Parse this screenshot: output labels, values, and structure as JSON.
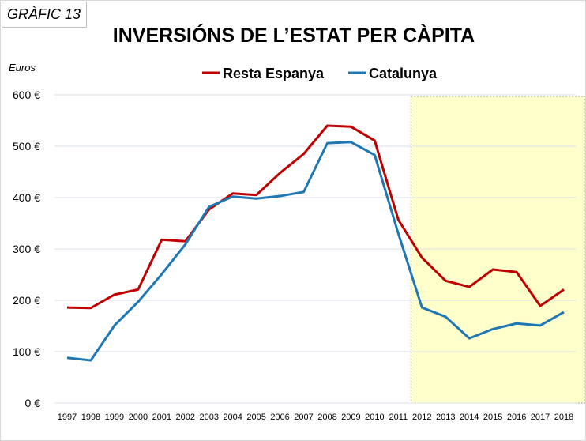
{
  "badge": "GRÀFIC  13",
  "chart_data": {
    "type": "line",
    "title": "INVERSIÓNS DE L’ESTAT PER CÀPITA",
    "ylabel": "Euros",
    "xlabel": "",
    "ylim": [
      0,
      600
    ],
    "yticks": [
      "0 €",
      "100 €",
      "200 €",
      "300 €",
      "400 €",
      "500 €",
      "600 €"
    ],
    "categories": [
      "1997",
      "1998",
      "1999",
      "2000",
      "2001",
      "2002",
      "2003",
      "2004",
      "2005",
      "2006",
      "2007",
      "2008",
      "2009",
      "2010",
      "2011",
      "2012",
      "2013",
      "2014",
      "2015",
      "2016",
      "2017",
      "2018"
    ],
    "grid": true,
    "legend": "top",
    "highlight_range": [
      "2012",
      "2018"
    ],
    "highlight_color": "#ffffcc",
    "series": [
      {
        "name": "Resta Espanya",
        "color": "#c00000",
        "values": [
          186,
          185,
          211,
          221,
          318,
          315,
          377,
          408,
          405,
          448,
          485,
          540,
          538,
          511,
          357,
          283,
          238,
          226,
          260,
          255,
          189,
          221
        ]
      },
      {
        "name": "Catalunya",
        "color": "#1f77b4",
        "values": [
          88,
          83,
          151,
          197,
          251,
          309,
          382,
          402,
          398,
          403,
          411,
          506,
          508,
          483,
          330,
          186,
          168,
          126,
          144,
          155,
          151,
          177
        ]
      }
    ]
  }
}
